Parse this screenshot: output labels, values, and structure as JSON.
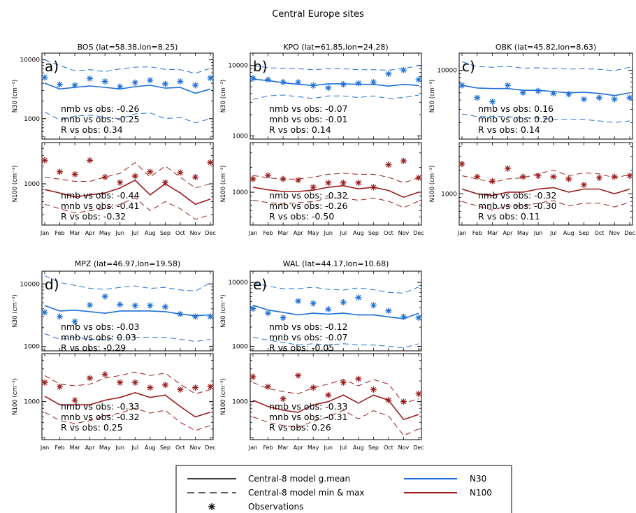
{
  "title": "Central Europe sites",
  "months": [
    "Jan",
    "Feb",
    "Mar",
    "Apr",
    "May",
    "Jun",
    "Jul",
    "Aug",
    "Sep",
    "Oct",
    "Nov",
    "Dec"
  ],
  "colors": {
    "n30": "#1f6fd6",
    "n100": "#9b1c1c"
  },
  "n30_ylabel_html": "N30 (cm⁻³)",
  "n100_ylabel_html": "N100 (cm⁻³)",
  "chart_data": [
    {
      "type": "line",
      "site": "BOS (lat=58.38,lon=8.25)",
      "letter": "a)",
      "n30": {
        "ylim": [
          450,
          13000
        ],
        "ticks": [
          1000,
          10000
        ],
        "tick_labels": [
          "1000",
          "10000"
        ],
        "gmean": [
          4000,
          3200,
          3400,
          3600,
          3400,
          3200,
          3500,
          3700,
          3300,
          3400,
          2700,
          3200
        ],
        "min": [
          1300,
          950,
          1100,
          1150,
          1050,
          1000,
          1200,
          1250,
          1000,
          1050,
          850,
          1000
        ],
        "max": [
          10000,
          8000,
          6500,
          6800,
          6300,
          7000,
          7500,
          7600,
          6900,
          6800,
          5900,
          7200
        ],
        "obs": [
          5000,
          3800,
          3700,
          4800,
          4300,
          3500,
          4100,
          4500,
          3900,
          4300,
          3700,
          4900
        ],
        "stats": [
          "nmb vs obs:   -0.26",
          "mnb vs obs:   -0.25",
          "R vs obs:    0.34"
        ]
      },
      "n100": {
        "ylim": [
          200,
          5000
        ],
        "ticks": [
          1000
        ],
        "tick_labels": [
          "1000"
        ],
        "gmean": [
          800,
          700,
          600,
          650,
          700,
          850,
          1150,
          650,
          1000,
          700,
          450,
          550
        ],
        "min": [
          450,
          380,
          320,
          350,
          380,
          450,
          580,
          350,
          500,
          380,
          250,
          300
        ],
        "max": [
          1300,
          1200,
          1100,
          1100,
          1300,
          1500,
          2300,
          1300,
          2000,
          1300,
          850,
          1000
        ],
        "obs": [
          2500,
          1600,
          1450,
          2500,
          1300,
          1050,
          1350,
          1600,
          1050,
          1550,
          1300,
          2300
        ],
        "stats": [
          "nmb vs obs:   -0.44",
          "mnb vs obs:   -0.41",
          "R vs obs:   -0.32"
        ]
      }
    },
    {
      "type": "line",
      "site": "KPO (lat=61.85,lon=24.28)",
      "letter": "b)",
      "n30": {
        "ylim": [
          900,
          15000
        ],
        "ticks": [
          1000,
          10000
        ],
        "tick_labels": [
          "1000",
          "10000"
        ],
        "gmean": [
          6400,
          6100,
          5700,
          5400,
          5200,
          5500,
          5500,
          5400,
          5400,
          5100,
          5400,
          5200
        ],
        "min": [
          3300,
          3700,
          3800,
          3600,
          3400,
          3700,
          3700,
          3500,
          3700,
          3400,
          3500,
          3800
        ],
        "max": [
          10000,
          9300,
          9100,
          9000,
          8700,
          9000,
          9000,
          8700,
          8700,
          8600,
          9000,
          10000
        ],
        "obs": [
          6600,
          6300,
          5800,
          5800,
          5200,
          4800,
          5400,
          5600,
          5800,
          7600,
          8600,
          6300
        ],
        "stats": [
          "nmb vs obs:   -0.07",
          "mnb vs obs:   -0.01",
          "R vs obs:    0.14"
        ]
      },
      "n100": {
        "ylim": [
          400,
          4000
        ],
        "ticks": [
          1000
        ],
        "tick_labels": [
          "1000"
        ],
        "gmean": [
          1150,
          1070,
          1020,
          1020,
          1060,
          1150,
          1200,
          1100,
          1150,
          1050,
          870,
          1000
        ],
        "min": [
          800,
          750,
          720,
          750,
          770,
          850,
          850,
          800,
          850,
          780,
          650,
          780
        ],
        "max": [
          1600,
          1500,
          1430,
          1450,
          1520,
          1650,
          1700,
          1650,
          1650,
          1520,
          1300,
          1500
        ],
        "obs": [
          1450,
          1600,
          1450,
          1400,
          1150,
          1300,
          1300,
          1300,
          1150,
          2150,
          2400,
          1500
        ],
        "stats": [
          "nmb vs obs:   -0.32",
          "mnb vs obs:   -0.26",
          "R vs obs:   -0.50"
        ]
      }
    },
    {
      "type": "line",
      "site": "OBK (lat=45.82,lon=8.63)",
      "letter": "c)",
      "n30": {
        "ylim": [
          1200,
          17000
        ],
        "ticks": [
          10000
        ],
        "tick_labels": [
          "10000"
        ],
        "gmean": [
          6300,
          5800,
          5700,
          5700,
          5400,
          5400,
          5200,
          5000,
          5100,
          4900,
          4600,
          5000
        ],
        "min": [
          2600,
          2400,
          2400,
          2400,
          2300,
          2300,
          2200,
          2200,
          2200,
          2100,
          2000,
          2100
        ],
        "max": [
          13000,
          11200,
          11000,
          11300,
          10700,
          10800,
          10600,
          10400,
          10500,
          10300,
          9900,
          11000
        ],
        "obs": [
          6300,
          4300,
          3800,
          6300,
          5000,
          5300,
          4900,
          4800,
          4100,
          4300,
          4100,
          4300
        ],
        "stats": [
          "nmb vs obs:    0.16",
          "mnb vs obs:    0.20",
          "R vs obs:    0.14"
        ]
      },
      "n100": {
        "ylim": [
          400,
          4500
        ],
        "ticks": [
          1000
        ],
        "tick_labels": [
          "1000"
        ],
        "gmean": [
          1150,
          1000,
          950,
          1050,
          1050,
          1150,
          1200,
          1050,
          1150,
          1150,
          1000,
          1150
        ],
        "min": [
          800,
          700,
          620,
          700,
          700,
          760,
          820,
          700,
          760,
          760,
          680,
          780
        ],
        "max": [
          1700,
          1550,
          1400,
          1550,
          1600,
          1800,
          2000,
          1700,
          1850,
          1800,
          1600,
          1750
        ],
        "obs": [
          2400,
          1650,
          1450,
          2100,
          1650,
          1700,
          1650,
          1550,
          1300,
          1600,
          1650,
          1700
        ],
        "stats": [
          "nmb vs obs:   -0.32",
          "mnb vs obs:   -0.30",
          "R vs obs:    0.11"
        ]
      }
    },
    {
      "type": "line",
      "site": "MPZ (lat=46.97,lon=19.58)",
      "letter": "d)",
      "n30": {
        "ylim": [
          850,
          16000
        ],
        "ticks": [
          1000,
          10000
        ],
        "tick_labels": [
          "1000",
          "10000"
        ],
        "gmean": [
          4500,
          3700,
          3800,
          3600,
          3400,
          3700,
          3700,
          3700,
          3600,
          3300,
          3100,
          3200
        ],
        "min": [
          1600,
          1300,
          1400,
          1300,
          1300,
          1400,
          1400,
          1400,
          1400,
          1300,
          1200,
          1300
        ],
        "max": [
          13500,
          10500,
          9500,
          8500,
          8200,
          8800,
          9300,
          8500,
          8800,
          8000,
          7700,
          10500
        ],
        "obs": [
          3500,
          3000,
          2500,
          4600,
          6300,
          4700,
          4500,
          4500,
          4300,
          3300,
          3000,
          3000
        ],
        "stats": [
          "nmb vs obs:   -0.03",
          "mnb vs obs:    0.03",
          "R vs obs:   -0.29"
        ]
      },
      "n100": {
        "ylim": [
          280,
          5000
        ],
        "ticks": [
          1000
        ],
        "tick_labels": [
          "1000"
        ],
        "gmean": [
          1200,
          900,
          900,
          900,
          1050,
          1150,
          1350,
          1150,
          1250,
          850,
          600,
          700
        ],
        "min": [
          700,
          530,
          480,
          530,
          620,
          680,
          800,
          680,
          750,
          500,
          380,
          450
        ],
        "max": [
          2400,
          1800,
          1700,
          1800,
          2200,
          2400,
          2700,
          2400,
          2600,
          1800,
          1300,
          1500
        ],
        "obs": [
          1900,
          1650,
          1050,
          2200,
          2500,
          1900,
          1900,
          1600,
          1750,
          1500,
          1600,
          1650
        ],
        "stats": [
          "nmb vs obs:   -0.33",
          "mnb vs obs:   -0.32",
          "R vs obs:    0.25"
        ]
      }
    },
    {
      "type": "line",
      "site": "WAL (lat=44.17,lon=10.68)",
      "letter": "e)",
      "n30": {
        "ylim": [
          850,
          15000
        ],
        "ticks": [
          1000,
          10000
        ],
        "tick_labels": [
          "1000",
          "10000"
        ],
        "gmean": [
          4400,
          3700,
          3400,
          3100,
          3300,
          3200,
          3300,
          3100,
          3100,
          2900,
          2700,
          3300
        ],
        "min": [
          1400,
          1250,
          1150,
          1050,
          1100,
          1050,
          1100,
          1050,
          1050,
          1000,
          950,
          1100
        ],
        "max": [
          10000,
          8700,
          8000,
          8000,
          8400,
          7800,
          7600,
          8200,
          7700,
          7000,
          6800,
          8500
        ],
        "obs": [
          3900,
          3300,
          2800,
          5100,
          4700,
          3800,
          4900,
          5800,
          4400,
          3600,
          2900,
          2800
        ],
        "stats": [
          "nmb vs obs:   -0.12",
          "mnb vs obs:   -0.07",
          "R vs obs:   -0.05"
        ]
      },
      "n100": {
        "ylim": [
          280,
          5000
        ],
        "ticks": [
          1000
        ],
        "tick_labels": [
          "1000"
        ],
        "gmean": [
          1050,
          850,
          750,
          700,
          900,
          1000,
          1250,
          950,
          1250,
          1050,
          550,
          650
        ],
        "min": [
          600,
          500,
          450,
          420,
          520,
          600,
          750,
          560,
          740,
          620,
          320,
          400
        ],
        "max": [
          1900,
          1550,
          1400,
          1300,
          1600,
          1800,
          2100,
          1700,
          2100,
          1800,
          950,
          1100
        ],
        "obs": [
          2300,
          1650,
          1100,
          2400,
          1600,
          1250,
          1900,
          2150,
          1500,
          1050,
          1000,
          1300
        ],
        "stats": [
          "nmb vs obs:   -0.33",
          "mnb vs obs:   -0.31",
          "R vs obs:    0.26"
        ]
      }
    }
  ],
  "legend": {
    "items": [
      "Central-8 model g.mean",
      "Central-8 model min & max",
      "Observations"
    ],
    "colors": [
      "N30",
      "N100"
    ]
  }
}
